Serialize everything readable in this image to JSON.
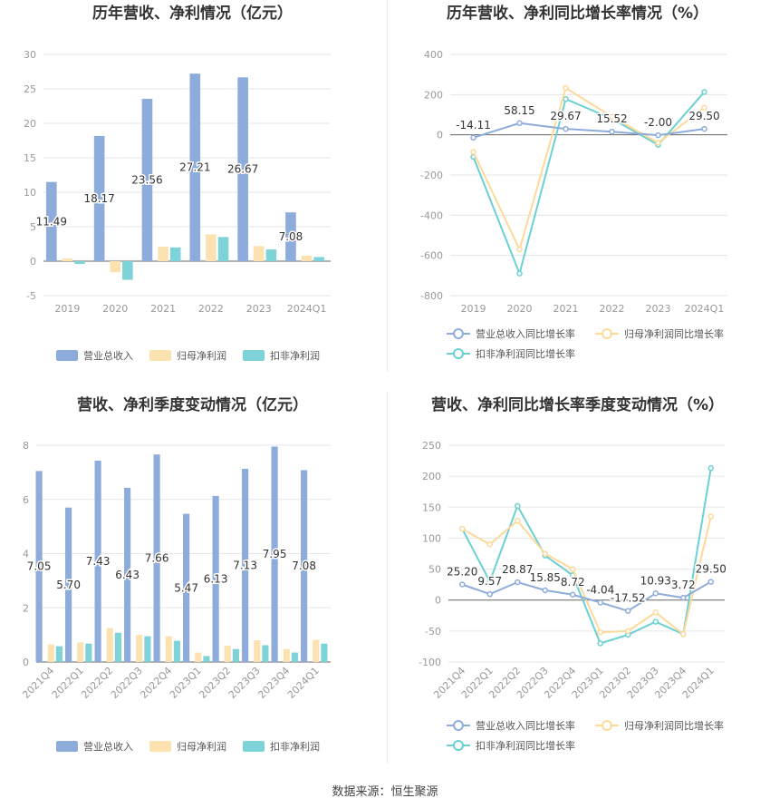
{
  "source_text": "数据来源：恒生聚源",
  "colors": {
    "revenue": "#8eacdb",
    "net_profit": "#fce2b1",
    "deducted_profit": "#7dd3d7",
    "revenue_line": "#8eacdb",
    "net_profit_line": "#fdd99a",
    "deducted_line": "#6cd0d3",
    "grid": "#e6e6e6",
    "axis_text": "#999999",
    "title": "#333333"
  },
  "chart_data": [
    {
      "id": "annual_values",
      "type": "bar",
      "title": "历年营收、净利情况（亿元）",
      "categories": [
        "2019",
        "2020",
        "2021",
        "2022",
        "2023",
        "2024Q1"
      ],
      "ylim": [
        -5,
        30
      ],
      "yticks": [
        -5,
        0,
        5,
        10,
        15,
        20,
        25,
        30
      ],
      "legend_position": "bottom",
      "series": [
        {
          "name": "营业总收入",
          "values": [
            11.49,
            18.17,
            23.56,
            27.21,
            26.67,
            7.08
          ],
          "labels": [
            "11.49",
            "18.17",
            "23.56",
            "27.21",
            "26.67",
            "7.08"
          ]
        },
        {
          "name": "归母净利润",
          "values": [
            0.4,
            -1.6,
            2.1,
            3.9,
            2.2,
            0.8
          ]
        },
        {
          "name": "扣非净利润",
          "values": [
            -0.4,
            -2.7,
            2.0,
            3.5,
            1.7,
            0.6
          ]
        }
      ]
    },
    {
      "id": "annual_growth",
      "type": "line",
      "title": "历年营收、净利同比增长率情况（%）",
      "categories": [
        "2019",
        "2020",
        "2021",
        "2022",
        "2023",
        "2024Q1"
      ],
      "ylim": [
        -800,
        400
      ],
      "yticks": [
        -800,
        -600,
        -400,
        -200,
        0,
        200,
        400
      ],
      "legend_position": "bottom",
      "series": [
        {
          "name": "营业总收入同比增长率",
          "values": [
            -14.11,
            58.15,
            29.67,
            15.52,
            -2.0,
            29.5
          ],
          "labels": [
            "-14.11",
            "58.15",
            "29.67",
            "15.52",
            "-2.00",
            "29.50"
          ]
        },
        {
          "name": "归母净利润同比增长率",
          "values": [
            -85,
            -570,
            233,
            90,
            -40,
            135
          ]
        },
        {
          "name": "扣非净利润同比增长率",
          "values": [
            -110,
            -690,
            178,
            80,
            -50,
            213
          ]
        }
      ]
    },
    {
      "id": "quarterly_values",
      "type": "bar",
      "title": "营收、净利季度变动情况（亿元）",
      "categories": [
        "2021Q4",
        "2022Q1",
        "2022Q2",
        "2022Q3",
        "2022Q4",
        "2023Q1",
        "2023Q2",
        "2023Q3",
        "2023Q4",
        "2024Q1"
      ],
      "ylim": [
        0,
        8
      ],
      "yticks": [
        0,
        2,
        4,
        6,
        8
      ],
      "legend_position": "bottom",
      "series": [
        {
          "name": "营业总收入",
          "values": [
            7.05,
            5.7,
            7.43,
            6.43,
            7.66,
            5.47,
            6.13,
            7.13,
            7.95,
            7.08
          ],
          "labels": [
            "7.05",
            "5.70",
            "7.43",
            "6.43",
            "7.66",
            "5.47",
            "6.13",
            "7.13",
            "7.95",
            "7.08"
          ]
        },
        {
          "name": "归母净利润",
          "values": [
            0.65,
            0.72,
            1.25,
            1.0,
            0.95,
            0.35,
            0.6,
            0.8,
            0.48,
            0.82
          ]
        },
        {
          "name": "扣非净利润",
          "values": [
            0.58,
            0.68,
            1.08,
            0.95,
            0.78,
            0.22,
            0.48,
            0.62,
            0.35,
            0.68
          ]
        }
      ]
    },
    {
      "id": "quarterly_growth",
      "type": "line",
      "title": "营收、净利同比增长率季度变动情况（%）",
      "categories": [
        "2021Q4",
        "2022Q1",
        "2022Q2",
        "2022Q3",
        "2022Q4",
        "2023Q1",
        "2023Q2",
        "2023Q3",
        "2023Q4",
        "2024Q1"
      ],
      "ylim": [
        -100,
        250
      ],
      "yticks": [
        -100,
        -50,
        0,
        50,
        100,
        150,
        200,
        250
      ],
      "legend_position": "bottom",
      "series": [
        {
          "name": "营业总收入同比增长率",
          "values": [
            25.2,
            9.57,
            28.87,
            15.85,
            8.72,
            -4.04,
            -17.52,
            10.93,
            3.72,
            29.5
          ],
          "labels": [
            "25.20",
            "9.57",
            "28.87",
            "15.85",
            "8.72",
            "-4.04",
            "-17.52",
            "10.93",
            "3.72",
            "29.50"
          ]
        },
        {
          "name": "归母净利润同比增长率",
          "values": [
            115,
            90,
            128,
            75,
            50,
            -52,
            -50,
            -20,
            -55,
            135
          ]
        },
        {
          "name": "扣非净利润同比增长率",
          "values": [
            115,
            30,
            152,
            72,
            40,
            -70,
            -56,
            -35,
            -55,
            213
          ]
        }
      ]
    }
  ]
}
